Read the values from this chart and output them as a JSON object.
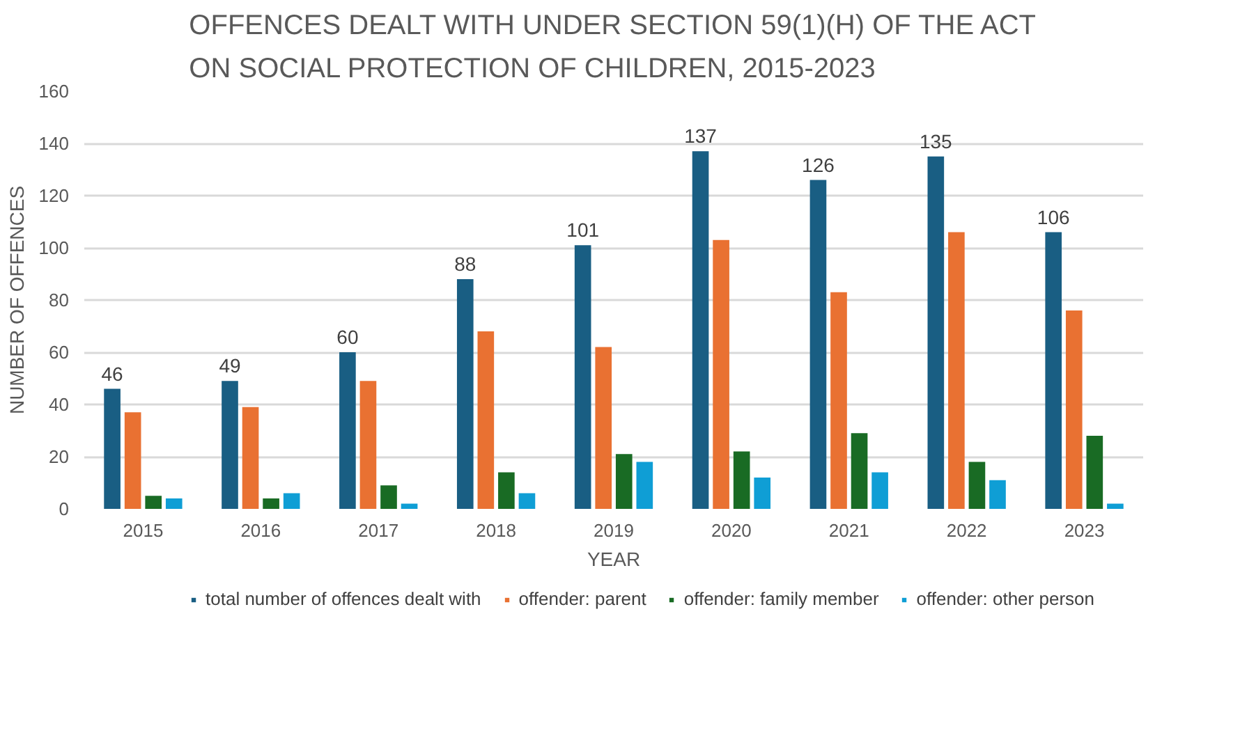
{
  "chart_data": {
    "type": "bar",
    "title": "OFFENCES DEALT WITH UNDER SECTION 59(1)(H) OF THE ACT\nON SOCIAL PROTECTION OF CHILDREN, 2015-2023",
    "xlabel": "YEAR",
    "ylabel": "NUMBER OF OFFENCES",
    "categories": [
      "2015",
      "2016",
      "2017",
      "2018",
      "2019",
      "2020",
      "2021",
      "2022",
      "2023"
    ],
    "series": [
      {
        "name": "total number of offences dealt with",
        "color": "#195e83",
        "values": [
          46,
          49,
          60,
          88,
          101,
          137,
          126,
          135,
          106
        ],
        "value_labels": [
          "46",
          "49",
          "60",
          "88",
          "101",
          "137",
          "126",
          "135",
          "106"
        ]
      },
      {
        "name": "offender: parent",
        "color": "#e97132",
        "values": [
          37,
          39,
          49,
          68,
          62,
          103,
          83,
          106,
          76
        ]
      },
      {
        "name": "offender: family member",
        "color": "#196b24",
        "values": [
          5,
          4,
          9,
          14,
          21,
          22,
          29,
          18,
          28
        ]
      },
      {
        "name": "offender: other person",
        "color": "#0f9ed5",
        "values": [
          4,
          6,
          2,
          6,
          18,
          12,
          14,
          11,
          2
        ]
      }
    ],
    "ylim": [
      0,
      160
    ],
    "yticks": [
      0,
      20,
      40,
      60,
      80,
      100,
      120,
      140,
      160
    ],
    "grid": "y",
    "legend": "bottom"
  }
}
